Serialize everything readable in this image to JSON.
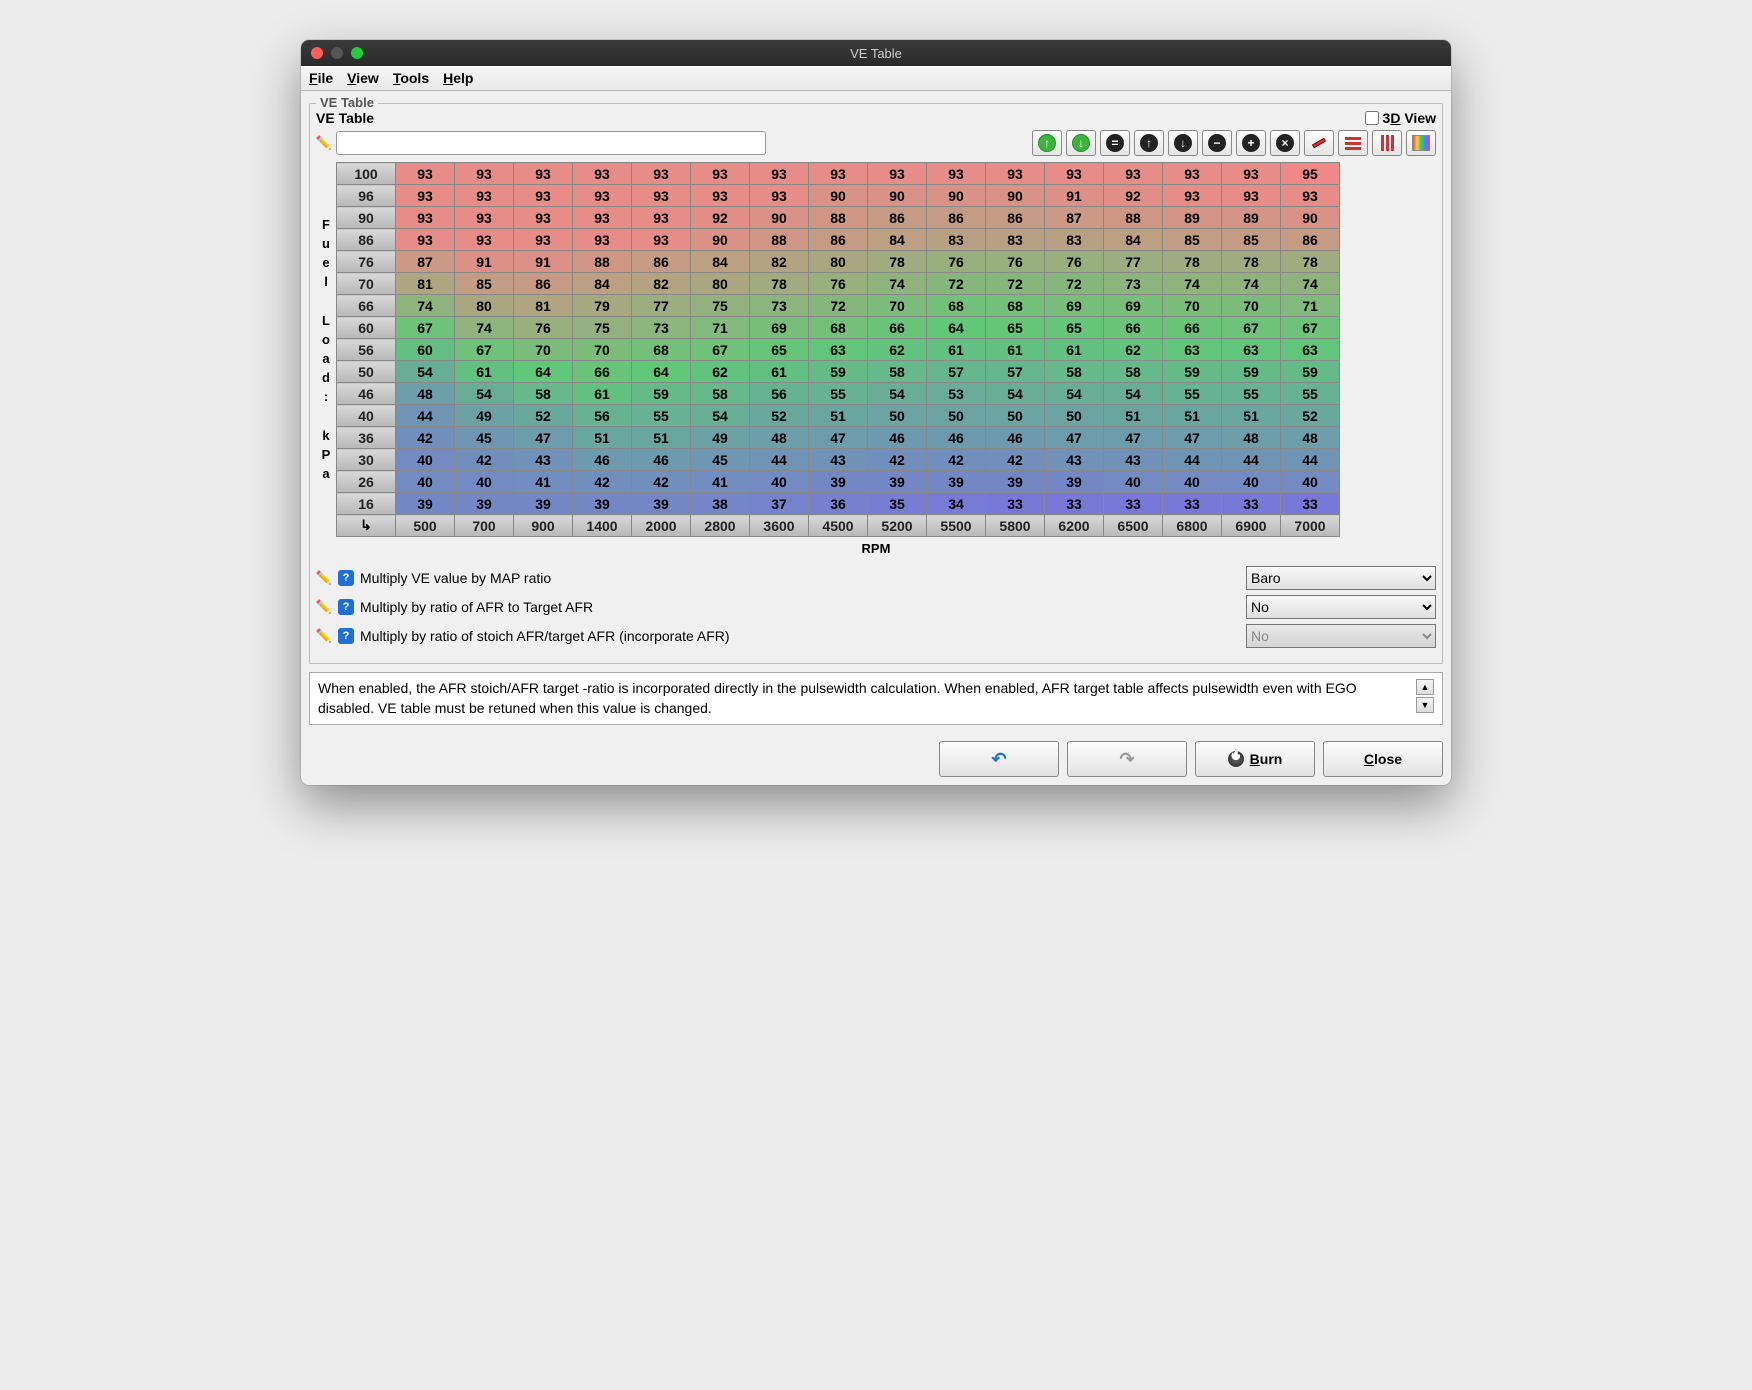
{
  "window": {
    "title": "VE Table"
  },
  "menu": {
    "file": "File",
    "view": "View",
    "tools": "Tools",
    "help": "Help"
  },
  "panel": {
    "legend": "VE Table",
    "subtitle": "VE Table",
    "view3d_label": "3D View"
  },
  "axes": {
    "y_label": "Fuel Load: kPa",
    "x_label": "RPM",
    "y_bins": [
      100,
      96,
      90,
      86,
      76,
      70,
      66,
      60,
      56,
      50,
      46,
      40,
      36,
      30,
      26,
      16
    ],
    "x_bins": [
      500,
      700,
      900,
      1400,
      2000,
      2800,
      3600,
      4500,
      5200,
      5500,
      5800,
      6200,
      6500,
      6800,
      6900,
      7000
    ]
  },
  "table": {
    "rows": [
      [
        93,
        93,
        93,
        93,
        93,
        93,
        93,
        93,
        93,
        93,
        93,
        93,
        93,
        93,
        93,
        95
      ],
      [
        93,
        93,
        93,
        93,
        93,
        93,
        93,
        90,
        90,
        90,
        90,
        91,
        92,
        93,
        93,
        93
      ],
      [
        93,
        93,
        93,
        93,
        93,
        92,
        90,
        88,
        86,
        86,
        86,
        87,
        88,
        89,
        89,
        90
      ],
      [
        93,
        93,
        93,
        93,
        93,
        90,
        88,
        86,
        84,
        83,
        83,
        83,
        84,
        85,
        85,
        86
      ],
      [
        87,
        91,
        91,
        88,
        86,
        84,
        82,
        80,
        78,
        76,
        76,
        76,
        77,
        78,
        78,
        78
      ],
      [
        81,
        85,
        86,
        84,
        82,
        80,
        78,
        76,
        74,
        72,
        72,
        72,
        73,
        74,
        74,
        74
      ],
      [
        74,
        80,
        81,
        79,
        77,
        75,
        73,
        72,
        70,
        68,
        68,
        69,
        69,
        70,
        70,
        71
      ],
      [
        67,
        74,
        76,
        75,
        73,
        71,
        69,
        68,
        66,
        64,
        65,
        65,
        66,
        66,
        67,
        67
      ],
      [
        60,
        67,
        70,
        70,
        68,
        67,
        65,
        63,
        62,
        61,
        61,
        61,
        62,
        63,
        63,
        63
      ],
      [
        54,
        61,
        64,
        66,
        64,
        62,
        61,
        59,
        58,
        57,
        57,
        58,
        58,
        59,
        59,
        59
      ],
      [
        48,
        54,
        58,
        61,
        59,
        58,
        56,
        55,
        54,
        53,
        54,
        54,
        54,
        55,
        55,
        55
      ],
      [
        44,
        49,
        52,
        56,
        55,
        54,
        52,
        51,
        50,
        50,
        50,
        50,
        51,
        51,
        51,
        52
      ],
      [
        42,
        45,
        47,
        51,
        51,
        49,
        48,
        47,
        46,
        46,
        46,
        47,
        47,
        47,
        48,
        48
      ],
      [
        40,
        42,
        43,
        46,
        46,
        45,
        44,
        43,
        42,
        42,
        42,
        43,
        43,
        44,
        44,
        44
      ],
      [
        40,
        40,
        41,
        42,
        42,
        41,
        40,
        39,
        39,
        39,
        39,
        39,
        40,
        40,
        40,
        40
      ],
      [
        39,
        39,
        39,
        39,
        39,
        38,
        37,
        36,
        35,
        34,
        33,
        33,
        33,
        33,
        33,
        33
      ]
    ],
    "min_value": 33,
    "max_value": 95
  },
  "options": [
    {
      "label": "Multiply VE value by MAP ratio",
      "value": "Baro",
      "disabled": false
    },
    {
      "label": "Multiply by ratio of AFR to Target AFR",
      "value": "No",
      "disabled": false
    },
    {
      "label": "Multiply by ratio of stoich AFR/target AFR (incorporate AFR)",
      "value": "No",
      "disabled": true
    }
  ],
  "help_text": "When enabled, the AFR stoich/AFR target -ratio is incorporated directly in the pulsewidth calculation. When enabled, AFR target table affects pulsewidth even with EGO disabled. VE table must be retuned when this value is changed.",
  "buttons": {
    "burn": "Burn",
    "close": "Close"
  },
  "colors": {
    "gradient_low": "#7878d8",
    "gradient_mid": "#60c878",
    "gradient_high": "#f08888"
  }
}
